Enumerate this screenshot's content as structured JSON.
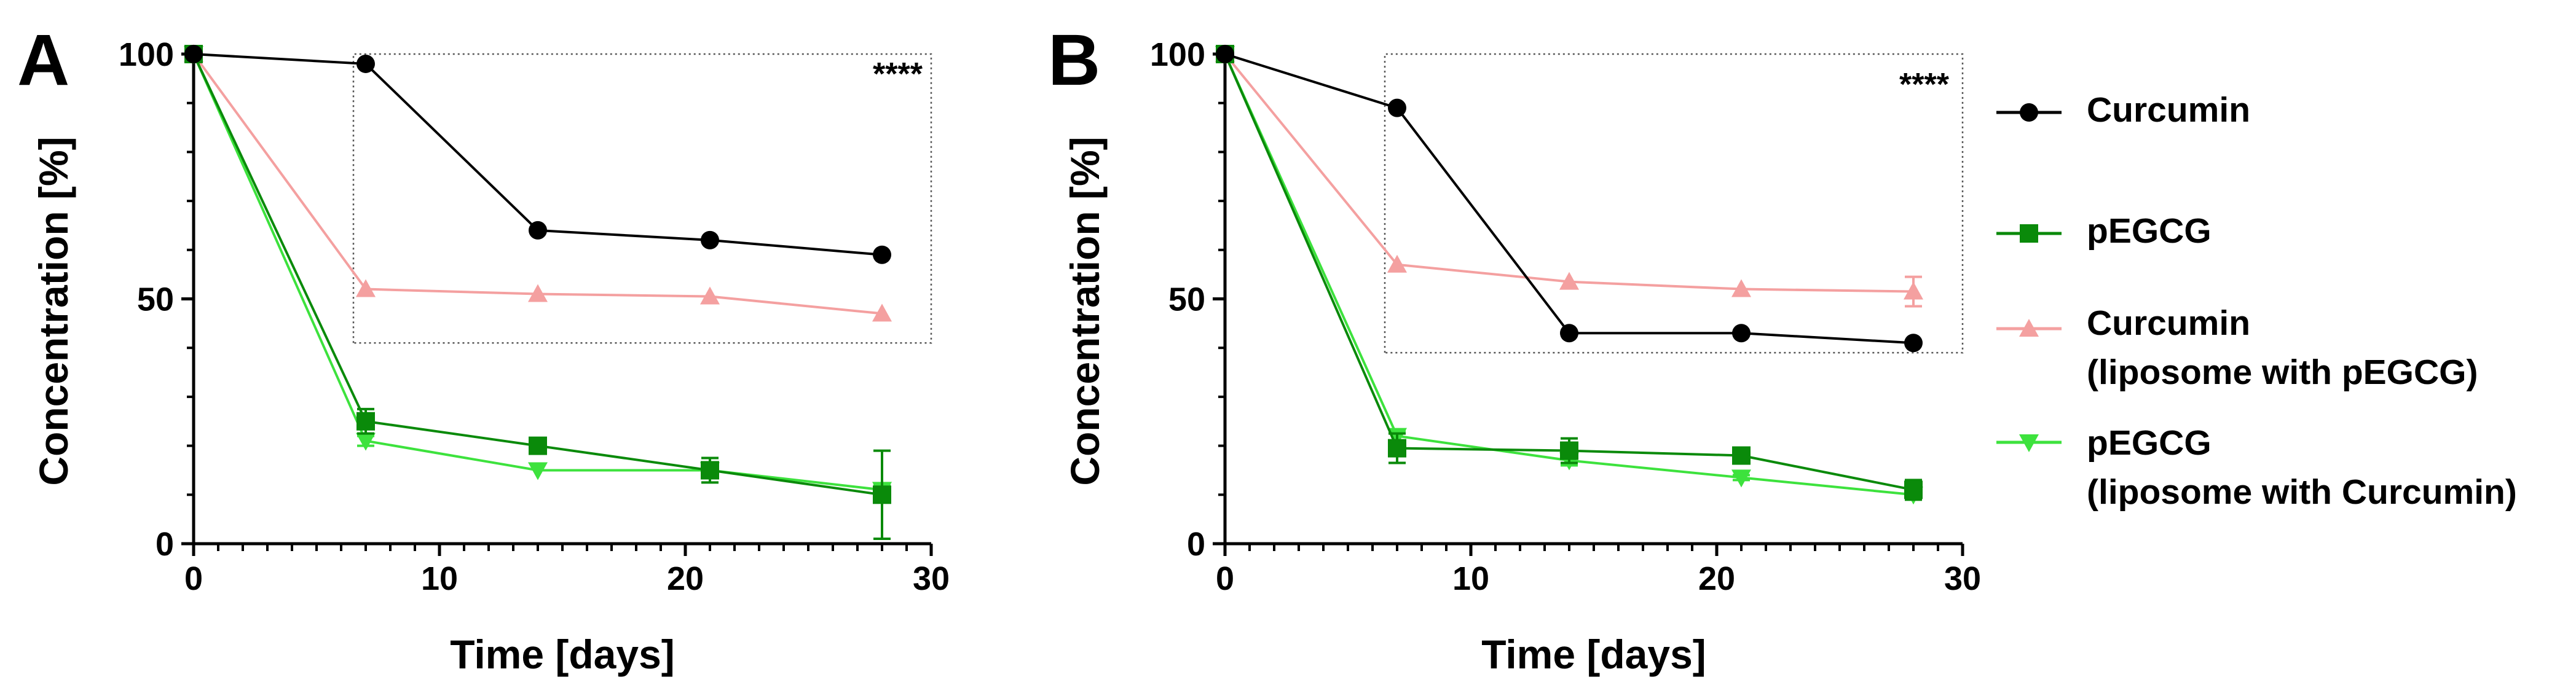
{
  "legend": {
    "entries": [
      {
        "label_lines": [
          "Curcumin"
        ],
        "color": "#000000",
        "marker": "circle"
      },
      {
        "label_lines": [
          "pEGCG"
        ],
        "color": "#0a8a0a",
        "marker": "square"
      },
      {
        "label_lines": [
          "Curcumin",
          " (liposome with pEGCG)"
        ],
        "color": "#f4a0a0",
        "marker": "triangle-up"
      },
      {
        "label_lines": [
          "pEGCG",
          "(liposome with Curcumin)"
        ],
        "color": "#3de23d",
        "marker": "triangle-down"
      }
    ]
  },
  "chart_data": [
    {
      "type": "line",
      "panel": "A",
      "xlabel": "Time [days]",
      "ylabel": "Concentration [%]",
      "xlim": [
        0,
        30
      ],
      "ylim": [
        0,
        100
      ],
      "xticks": [
        0,
        10,
        20,
        30
      ],
      "yticks": [
        0,
        50,
        100
      ],
      "annotation": "****",
      "x": [
        0,
        7,
        14,
        21,
        28
      ],
      "series": [
        {
          "name": "Curcumin",
          "values": [
            100,
            98,
            64,
            62,
            59
          ],
          "err": [
            0,
            0,
            0,
            0,
            0
          ]
        },
        {
          "name": "Curcumin (liposome with pEGCG)",
          "values": [
            100,
            52,
            51,
            50.5,
            47
          ],
          "err": [
            0,
            0,
            0,
            0,
            0
          ]
        },
        {
          "name": "pEGCG",
          "values": [
            100,
            25,
            20,
            15,
            10
          ],
          "err": [
            0,
            2.5,
            1,
            2.5,
            9
          ]
        },
        {
          "name": "pEGCG (liposome with Curcumin)",
          "values": [
            100,
            21,
            15,
            15,
            11
          ],
          "err": [
            0,
            1,
            0,
            0,
            1
          ]
        }
      ]
    },
    {
      "type": "line",
      "panel": "B",
      "xlabel": "Time [days]",
      "ylabel": "Concentration [%]",
      "xlim": [
        0,
        30
      ],
      "ylim": [
        0,
        100
      ],
      "xticks": [
        0,
        10,
        20,
        30
      ],
      "yticks": [
        0,
        50,
        100
      ],
      "annotation": "****",
      "x": [
        0,
        7,
        14,
        21,
        28
      ],
      "series": [
        {
          "name": "Curcumin",
          "values": [
            100,
            89,
            43,
            43,
            41
          ],
          "err": [
            0,
            0,
            0,
            0,
            0
          ]
        },
        {
          "name": "Curcumin (liposome with pEGCG)",
          "values": [
            100,
            57,
            53.5,
            52,
            51.5
          ],
          "err": [
            0,
            0,
            0,
            0,
            3
          ]
        },
        {
          "name": "pEGCG",
          "values": [
            100,
            19.5,
            19,
            18,
            11
          ],
          "err": [
            0,
            3,
            2.5,
            1,
            2
          ]
        },
        {
          "name": "pEGCG (liposome with Curcumin)",
          "values": [
            100,
            22,
            17,
            13.5,
            10
          ],
          "err": [
            0,
            1,
            1,
            0.5,
            1
          ]
        }
      ]
    }
  ]
}
